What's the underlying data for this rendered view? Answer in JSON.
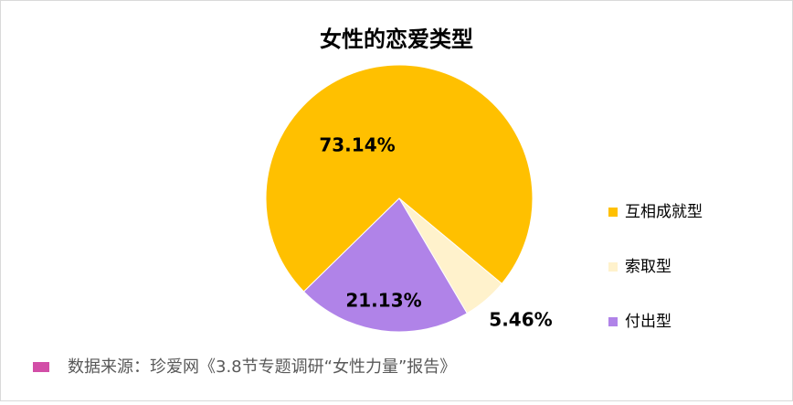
{
  "chart_data": {
    "type": "pie",
    "title": "女性的恋爱类型",
    "categories": [
      "互相成就型",
      "索取型",
      "付出型"
    ],
    "values": [
      73.14,
      5.46,
      21.13
    ],
    "value_labels": [
      "73.14%",
      "5.46%",
      "21.13%"
    ],
    "colors": [
      "#ffc000",
      "#fff2cc",
      "#b083e8"
    ],
    "legend": "right",
    "source": "数据来源：珍爱网《3.8节专题调研“女性力量”报告》",
    "source_color": "#d24ea7"
  }
}
